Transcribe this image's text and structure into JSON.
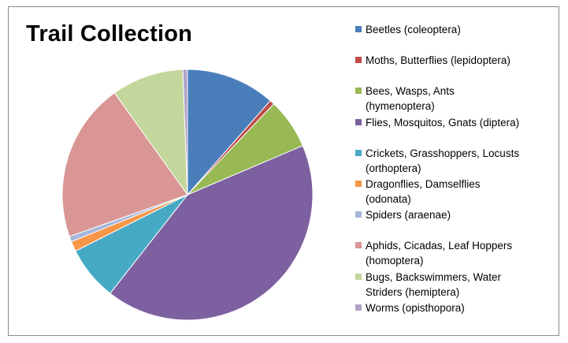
{
  "chart_data": {
    "type": "pie",
    "title": "Trail Collection",
    "series": [
      {
        "name": "Beetles (coleoptera)",
        "value": 11.5,
        "color": "#4a7ebb"
      },
      {
        "name": "Moths, Butterflies (lepidoptera)",
        "value": 0.6,
        "color": "#be4b48"
      },
      {
        "name": "Bees, Wasps, Ants (hymenoptera)",
        "value": 6.5,
        "color": "#98b954"
      },
      {
        "name": "Flies, Mosquitos, Gnats (diptera)",
        "value": 42.0,
        "color": "#7d60a0"
      },
      {
        "name": "Crickets, Grasshoppers, Locusts (orthoptera)",
        "value": 7.0,
        "color": "#46aac5"
      },
      {
        "name": "Dragonflies, Damselflies (odonata)",
        "value": 1.3,
        "color": "#f79646"
      },
      {
        "name": "Spiders (araenae)",
        "value": 0.7,
        "color": "#a5b6da"
      },
      {
        "name": "Aphids, Cicadas, Leaf Hoppers (homoptera)",
        "value": 20.5,
        "color": "#d99694"
      },
      {
        "name": "Bugs, Backswimmers, Water Striders (hemiptera)",
        "value": 9.3,
        "color": "#c3d69b"
      },
      {
        "name": "Worms (opisthopora)",
        "value": 0.6,
        "color": "#b3a2c7"
      }
    ],
    "legend_position": "right",
    "legend_labels": [
      "Beetles (coleoptera)",
      "Moths, Butterflies (lepidoptera)",
      "Bees, Wasps, Ants\n(hymenoptera)",
      "Flies, Mosquitos, Gnats (diptera)",
      "Crickets, Grasshoppers, Locusts\n(orthoptera)",
      "Dragonflies, Damselflies\n(odonata)",
      "Spiders (araenae)",
      "Aphids, Cicadas, Leaf Hoppers\n(homoptera)",
      "Bugs, Backswimmers, Water\nStriders (hemiptera)",
      "Worms (opisthopora)"
    ]
  }
}
